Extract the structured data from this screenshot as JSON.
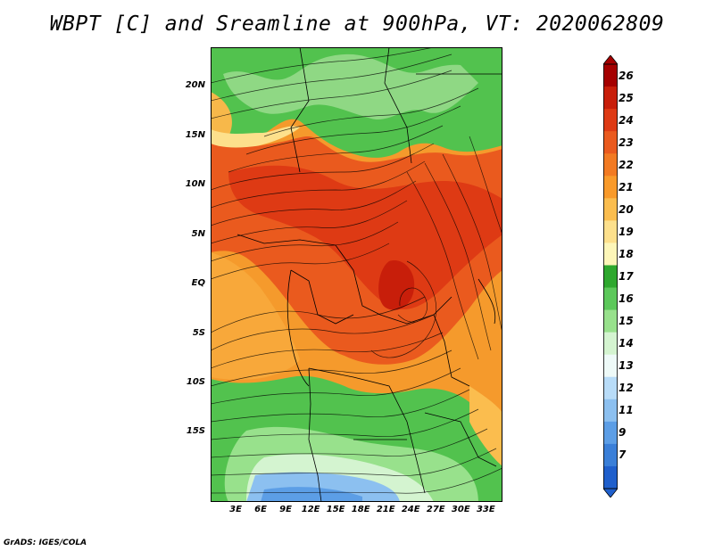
{
  "title": "WBPT [C] and Sreamline at 900hPa, VT: 2020062809",
  "credit": "GrADS: IGES/COLA",
  "map": {
    "lat_range": [
      -22,
      24
    ],
    "lon_range": [
      0,
      35
    ],
    "lat_ticks": [
      "20N",
      "15N",
      "10N",
      "5N",
      "EQ",
      "5S",
      "10S",
      "15S"
    ],
    "lat_values": [
      20,
      15,
      10,
      5,
      0,
      -5,
      -10,
      -15
    ],
    "lon_ticks": [
      "3E",
      "6E",
      "9E",
      "12E",
      "15E",
      "18E",
      "21E",
      "24E",
      "27E",
      "30E",
      "33E"
    ],
    "lon_values": [
      3,
      6,
      9,
      12,
      15,
      18,
      21,
      24,
      27,
      30,
      33
    ]
  },
  "colorbar": {
    "labels": [
      "26",
      "25",
      "24",
      "23",
      "22",
      "21",
      "20",
      "19",
      "18",
      "17",
      "16",
      "15",
      "14",
      "13",
      "12",
      "11",
      "9",
      "7"
    ],
    "colors": [
      "#a50000",
      "#c81e0a",
      "#de3a14",
      "#ea5a1e",
      "#f27a22",
      "#f99a2a",
      "#fbbd4e",
      "#fde08c",
      "#fdf6b8",
      "#2ea82e",
      "#5cc85a",
      "#98e18c",
      "#d4f4d0",
      "#eefaf8",
      "#b8dcf8",
      "#8cc0f0",
      "#5c9ee6",
      "#3a7fd8",
      "#1f5fcc"
    ]
  }
}
